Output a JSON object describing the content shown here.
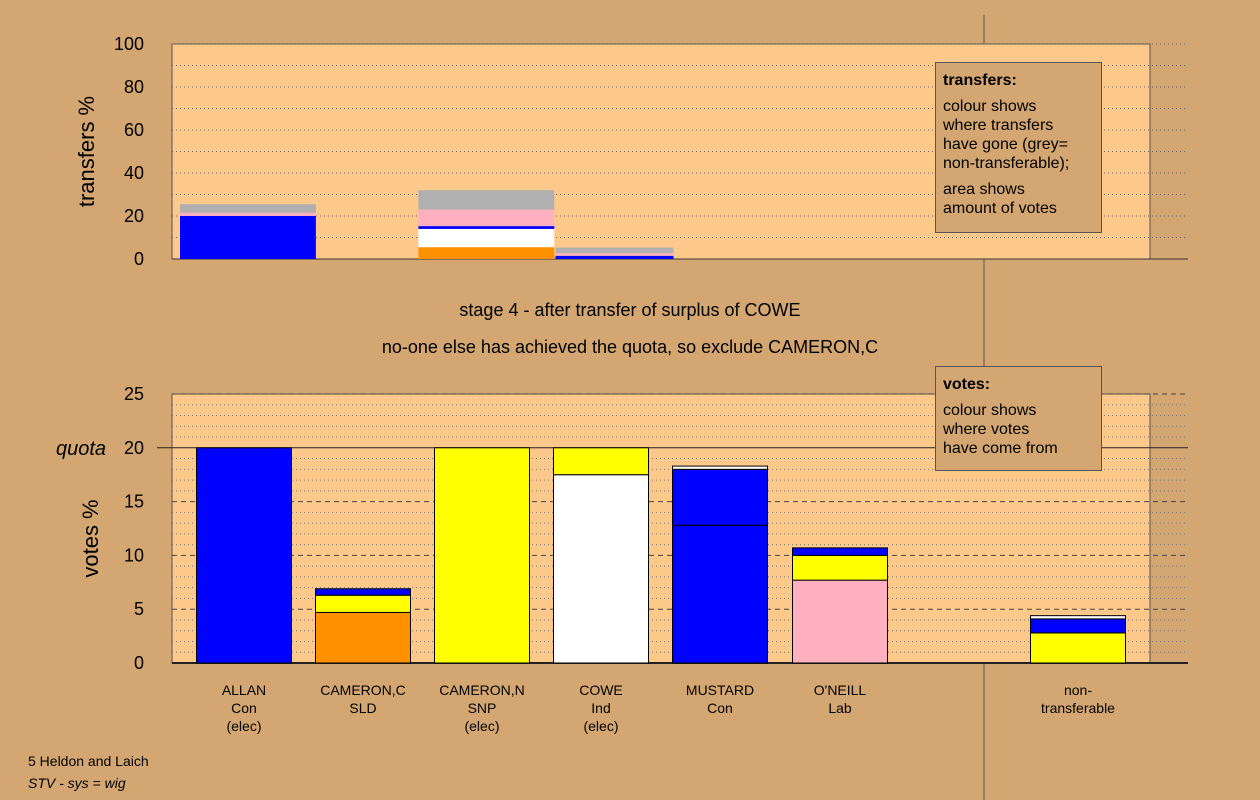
{
  "colors": {
    "page_bg": "#d4a772",
    "plot_bg": "#fdc98a",
    "Con": "#0000ff",
    "SLD": "#ff9000",
    "SNP": "#ffff00",
    "Ind": "#ffffff",
    "Lab": "#ffb0c0",
    "nontransferable": "#b0b0b0"
  },
  "captions": {
    "stage": "stage 4 - after transfer of surplus of COWE",
    "note": "no-one else has achieved the quota, so exclude CAMERON,C"
  },
  "legend_transfers": {
    "title": "transfers:",
    "line1": "colour shows",
    "line2": "where transfers",
    "line3": "have gone (grey=",
    "line4": "non-transferable);",
    "line5": "area shows",
    "line6": "amount of votes"
  },
  "legend_votes": {
    "title": "votes:",
    "line1": "colour shows",
    "line2": "where votes",
    "line3": "have come from"
  },
  "footer": {
    "line1": "5 Heldon and Laich",
    "line2": "STV - sys = wig"
  },
  "chart_data": [
    {
      "type": "bar",
      "ylabel": "transfers %",
      "ylim": [
        0,
        100
      ],
      "yticks": [
        0,
        20,
        40,
        60,
        80,
        100
      ],
      "grid": true,
      "bars": [
        {
          "x0": 0,
          "x1": 1.14,
          "segments": [
            {
              "party": "Con",
              "value": 20
            },
            {
              "party": "Lab",
              "value": 1.5
            },
            {
              "party": "nontransferable",
              "value": 4
            }
          ]
        },
        {
          "x0": 2.0,
          "x1": 3.14,
          "segments": [
            {
              "party": "SLD",
              "value": 5.5
            },
            {
              "party": "Ind",
              "value": 8.5
            },
            {
              "party": "Con",
              "value": 1.3
            },
            {
              "party": "Lab",
              "value": 7.7
            },
            {
              "party": "nontransferable",
              "value": 9
            }
          ]
        },
        {
          "x0": 3.15,
          "x1": 4.14,
          "segments": [
            {
              "party": "Con",
              "value": 1.5
            },
            {
              "party": "Lab",
              "value": 1.2
            },
            {
              "party": "nontransferable",
              "value": 2.6
            }
          ]
        }
      ]
    },
    {
      "type": "bar",
      "ylabel": "votes %",
      "ylim": [
        0,
        25
      ],
      "yticks": [
        0,
        5,
        10,
        15,
        20,
        25
      ],
      "quota": 20,
      "quota_label": "quota",
      "grid": true,
      "categories": [
        {
          "name": "ALLAN",
          "party": "Con",
          "status": "(elec)",
          "segments": [
            {
              "party": "Con",
              "value": 20
            }
          ]
        },
        {
          "name": "CAMERON,C",
          "party": "SLD",
          "status": "",
          "segments": [
            {
              "party": "SLD",
              "value": 4.7
            },
            {
              "party": "SNP",
              "value": 1.6
            },
            {
              "party": "Con",
              "value": 0.6
            }
          ]
        },
        {
          "name": "CAMERON,N",
          "party": "SNP",
          "status": "(elec)",
          "segments": [
            {
              "party": "SNP",
              "value": 20
            }
          ]
        },
        {
          "name": "COWE",
          "party": "Ind",
          "status": "(elec)",
          "segments": [
            {
              "party": "Ind",
              "value": 17.5
            },
            {
              "party": "SNP",
              "value": 2.5
            }
          ]
        },
        {
          "name": "MUSTARD",
          "party": "Con",
          "status": "",
          "segments": [
            {
              "party": "Con",
              "value": 12.8
            },
            {
              "party": "Con",
              "value": 5.2
            },
            {
              "party": "Ind",
              "value": 0.3
            }
          ]
        },
        {
          "name": "O'NEILL",
          "party": "Lab",
          "status": "",
          "segments": [
            {
              "party": "Lab",
              "value": 7.7
            },
            {
              "party": "SNP",
              "value": 2.3
            },
            {
              "party": "Con",
              "value": 0.7
            }
          ]
        },
        {
          "name": "non-",
          "party": "transferable",
          "status": "",
          "segments": [
            {
              "party": "SNP",
              "value": 2.8
            },
            {
              "party": "Con",
              "value": 1.3
            },
            {
              "party": "Ind",
              "value": 0.3
            }
          ]
        }
      ]
    }
  ]
}
